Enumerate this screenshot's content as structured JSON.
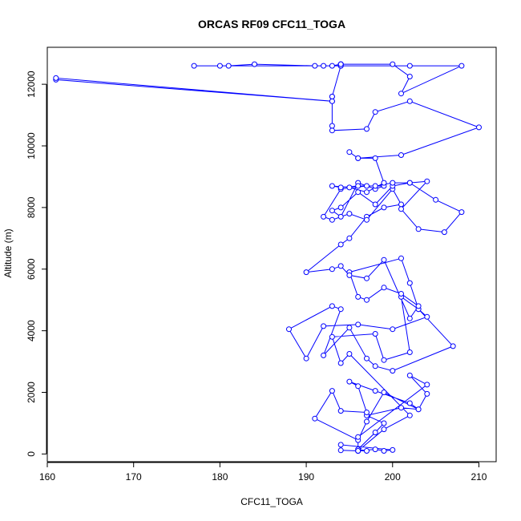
{
  "chart_data": {
    "type": "line",
    "title": "ORCAS RF09 CFC11_TOGA",
    "xlabel": "CFC11_TOGA",
    "ylabel": "Altitude (m)",
    "xlim": [
      160,
      212
    ],
    "ylim": [
      -250,
      13200
    ],
    "xticks": [
      160,
      170,
      180,
      190,
      200,
      210
    ],
    "yticks": [
      0,
      2000,
      4000,
      6000,
      8000,
      10000,
      12000
    ],
    "grid": false,
    "legend": "none",
    "series": [
      {
        "color": "#0000ff",
        "marker": "open-circle",
        "x": [
          196,
          198,
          199,
          200,
          194,
          194,
          196,
          197,
          196,
          198,
          199,
          197,
          201,
          203,
          202,
          198,
          195,
          196,
          197,
          194,
          193,
          191,
          196,
          197,
          199,
          203,
          204,
          202,
          204,
          196,
          196,
          199,
          202,
          195,
          194,
          193,
          198,
          199,
          202,
          201,
          203,
          207,
          200,
          198,
          197,
          195,
          192,
          194,
          193,
          188,
          190,
          192,
          196,
          200,
          204,
          203,
          202,
          201,
          195,
          196,
          197,
          199,
          201,
          203,
          202,
          199,
          197,
          195,
          194,
          193,
          190,
          194,
          195,
          197,
          199,
          201,
          200,
          197,
          195,
          193,
          192,
          194,
          197,
          199,
          198,
          196,
          194,
          193,
          194,
          196,
          198,
          200,
          202,
          205,
          208,
          206,
          203,
          201,
          204,
          202,
          200,
          198,
          196,
          194,
          193,
          195,
          197,
          199,
          198,
          196,
          195,
          196,
          201,
          210,
          202,
          198,
          197,
          193,
          193,
          193,
          193,
          161,
          161,
          193,
          193,
          194,
          194,
          194,
          193,
          192,
          191,
          184,
          181,
          180,
          177,
          194,
          194,
          200,
          202,
          201,
          208,
          202,
          194,
          194
        ]
      }
    ],
    "y": [
      100,
      150,
      100,
      130,
      300,
      120,
      100,
      100,
      150,
      700,
      1000,
      1250,
      1500,
      1450,
      1650,
      2050,
      2350,
      2200,
      1350,
      1400,
      2050,
      1150,
      450,
      1050,
      2000,
      1450,
      1950,
      2550,
      2250,
      550,
      100,
      800,
      1250,
      3250,
      2950,
      3800,
      3900,
      3050,
      3300,
      5100,
      4700,
      3500,
      2700,
      2850,
      3100,
      4100,
      3200,
      4700,
      4800,
      4050,
      3100,
      4150,
      4200,
      4050,
      4450,
      4700,
      5550,
      6350,
      5900,
      5100,
      5000,
      5400,
      5200,
      4800,
      4400,
      6300,
      5700,
      5800,
      6100,
      6000,
      5900,
      6800,
      7000,
      7700,
      8000,
      8100,
      8600,
      7600,
      7800,
      7600,
      7700,
      8600,
      8700,
      8700,
      8600,
      8800,
      7700,
      7900,
      8000,
      8500,
      8100,
      8700,
      8800,
      8250,
      7850,
      7200,
      7300,
      7950,
      8850,
      8800,
      8800,
      8700,
      8700,
      8650,
      8700,
      8650,
      8500,
      8800,
      9600,
      9600,
      9800,
      9600,
      9700,
      10600,
      11450,
      11100,
      10550,
      10500,
      10650,
      11600,
      11450,
      12150,
      12200,
      11450,
      11600,
      12600,
      12650,
      12650,
      12600,
      12600,
      12600,
      12650,
      12600,
      12600,
      12600,
      12600,
      12650,
      12650,
      12250,
      11700,
      12600,
      12600,
      12600,
      12650
    ]
  }
}
